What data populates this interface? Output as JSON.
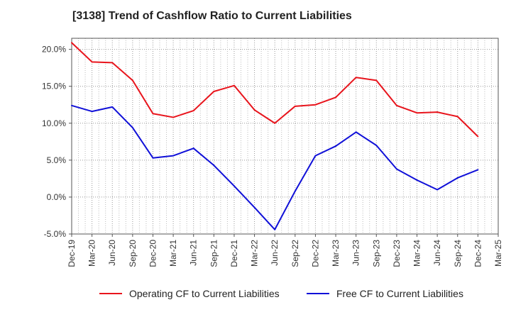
{
  "title": "[3138]  Trend of Cashflow Ratio to Current Liabilities",
  "chart_data": {
    "type": "line",
    "title": "[3138]  Trend of Cashflow Ratio to Current Liabilities",
    "categories": [
      "Dec-19",
      "Mar-20",
      "Jun-20",
      "Sep-20",
      "Dec-20",
      "Mar-21",
      "Jun-21",
      "Sep-21",
      "Dec-21",
      "Mar-22",
      "Jun-22",
      "Sep-22",
      "Dec-22",
      "Mar-23",
      "Jun-23",
      "Sep-23",
      "Dec-23",
      "Mar-24",
      "Jun-24",
      "Sep-24",
      "Dec-24",
      "Mar-25"
    ],
    "y_ticks": [
      "20.0%",
      "15.0%",
      "10.0%",
      "5.0%",
      "0.0%",
      "-5.0%"
    ],
    "y_tick_values": [
      20,
      15,
      10,
      5,
      0,
      -5
    ],
    "ylim": [
      -5,
      21.5
    ],
    "grid": true,
    "legend_position": "bottom",
    "series": [
      {
        "name": "Operating CF to Current Liabilities",
        "color": "#e8141c",
        "values": [
          20.9,
          18.3,
          18.2,
          15.8,
          11.3,
          10.8,
          11.7,
          14.3,
          15.1,
          11.8,
          10.0,
          12.3,
          12.5,
          13.5,
          16.2,
          15.8,
          12.4,
          11.4,
          11.5,
          10.9,
          8.2,
          null
        ]
      },
      {
        "name": "Free CF to Current Liabilities",
        "color": "#1010d8",
        "values": [
          12.4,
          11.6,
          12.2,
          9.4,
          5.3,
          5.6,
          6.6,
          4.3,
          1.5,
          -1.4,
          -4.4,
          0.8,
          5.6,
          6.9,
          8.8,
          7.0,
          3.8,
          2.3,
          1.0,
          2.6,
          3.7,
          null
        ]
      }
    ]
  }
}
